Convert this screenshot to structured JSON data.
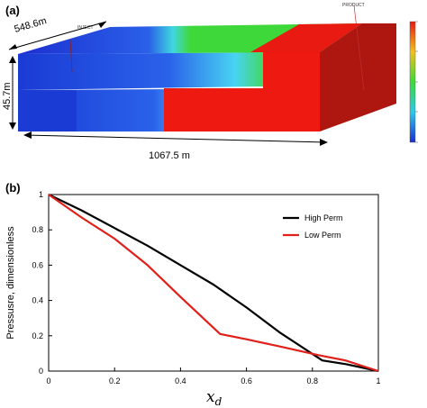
{
  "panel_a": {
    "label": "(a)",
    "width_label": "548.6m",
    "height_label": "45.7m",
    "length_label": "1067.5 m",
    "inject_label": "INJECT",
    "product_label": "PRODUCT",
    "colors": {
      "blue": "#1a3fd6",
      "green": "#3ed83a",
      "red": "#ee1a12",
      "red_dark": "#a8160f"
    }
  },
  "panel_b": {
    "label": "(b)"
  },
  "chart_data": {
    "type": "line",
    "title": "",
    "xlabel": "x_d",
    "ylabel": "Pressusre, dimensionless",
    "xlim": [
      0,
      1
    ],
    "ylim": [
      0,
      1
    ],
    "xticks": [
      "0",
      "0.2",
      "0.4",
      "0.6",
      "0.8",
      "1"
    ],
    "yticks": [
      "0",
      "0.2",
      "0.4",
      "0.6",
      "0.8",
      "1"
    ],
    "legend_position": "top-right",
    "grid": false,
    "series": [
      {
        "name": "High Perm",
        "color": "#000000",
        "x": [
          0,
          0.1,
          0.2,
          0.3,
          0.4,
          0.5,
          0.6,
          0.7,
          0.83,
          0.9,
          1.0
        ],
        "y": [
          1.0,
          0.91,
          0.81,
          0.71,
          0.6,
          0.49,
          0.36,
          0.22,
          0.06,
          0.04,
          0.0
        ]
      },
      {
        "name": "Low Perm",
        "color": "#e0201a",
        "x": [
          0,
          0.1,
          0.2,
          0.3,
          0.4,
          0.52,
          0.6,
          0.7,
          0.82,
          0.9,
          1.0
        ],
        "y": [
          1.0,
          0.87,
          0.75,
          0.6,
          0.42,
          0.21,
          0.18,
          0.14,
          0.09,
          0.06,
          0.0
        ]
      }
    ]
  }
}
